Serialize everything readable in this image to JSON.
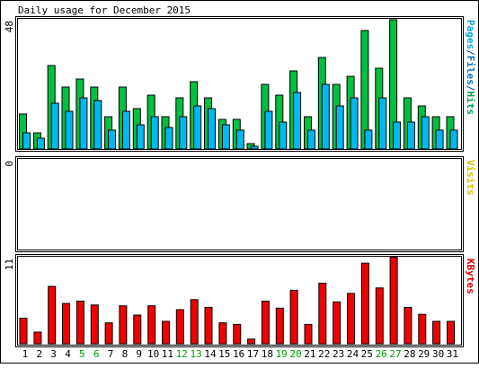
{
  "chart_data": {
    "type": "bar",
    "title": "Daily usage for December 2015",
    "x": [
      "1",
      "2",
      "3",
      "4",
      "5",
      "6",
      "7",
      "8",
      "9",
      "10",
      "11",
      "12",
      "13",
      "14",
      "15",
      "16",
      "17",
      "18",
      "19",
      "20",
      "21",
      "22",
      "23",
      "24",
      "25",
      "26",
      "27",
      "28",
      "29",
      "30",
      "31"
    ],
    "weekend_days": [
      "5",
      "6",
      "12",
      "13",
      "19",
      "20",
      "26",
      "27"
    ],
    "panels": [
      {
        "name": "hits-files-pages",
        "ymax_label": "48",
        "ymax": 48,
        "side_label": [
          {
            "text": "Pages",
            "color": "#00a8d8"
          },
          {
            "text": "/",
            "color": "#0044aa"
          },
          {
            "text": "Files",
            "color": "#0070c0"
          },
          {
            "text": "/",
            "color": "#0044aa"
          },
          {
            "text": "Hits",
            "color": "#00a050"
          }
        ],
        "series": [
          {
            "key": "hits",
            "color": "#00c040",
            "values": [
              13,
              6,
              31,
              23,
              26,
              23,
              12,
              23,
              15,
              20,
              12,
              19,
              25,
              19,
              11,
              11,
              2,
              24,
              20,
              29,
              12,
              34,
              24,
              27,
              44,
              30,
              48,
              19,
              16,
              12,
              12
            ]
          },
          {
            "key": "files",
            "color": "#00b8f0",
            "values": [
              6,
              4,
              17,
              14,
              19,
              18,
              7,
              14,
              9,
              12,
              8,
              12,
              16,
              15,
              9,
              7,
              1,
              14,
              10,
              21,
              7,
              24,
              16,
              19,
              7,
              19,
              10,
              10,
              12,
              7,
              7
            ]
          }
        ]
      },
      {
        "name": "visits",
        "ymax_label": "0",
        "ymax": 0,
        "side_label": [
          {
            "text": "Visits",
            "color": "#d0c000"
          }
        ],
        "series": []
      },
      {
        "name": "kbytes",
        "ymax_label": "11",
        "ymax": 11,
        "side_label": [
          {
            "text": "KBytes",
            "color": "#e00000"
          }
        ],
        "series": [
          {
            "key": "kbytes",
            "color": "#f00000",
            "values": [
              3.3,
              1.5,
              7.4,
              5.2,
              5.5,
              5.0,
              2.7,
              4.9,
              3.7,
              4.9,
              2.9,
              4.4,
              5.7,
              4.7,
              2.7,
              2.5,
              0.6,
              5.5,
              4.6,
              6.9,
              2.5,
              7.8,
              5.4,
              6.5,
              10.4,
              7.2,
              11.2,
              4.7,
              3.8,
              2.9,
              2.9
            ]
          }
        ]
      }
    ],
    "colors": {
      "panel_bg": "#ffffff",
      "frame": "#000000",
      "weekday_label": "#000000",
      "weekend_label": "#00a000"
    }
  }
}
